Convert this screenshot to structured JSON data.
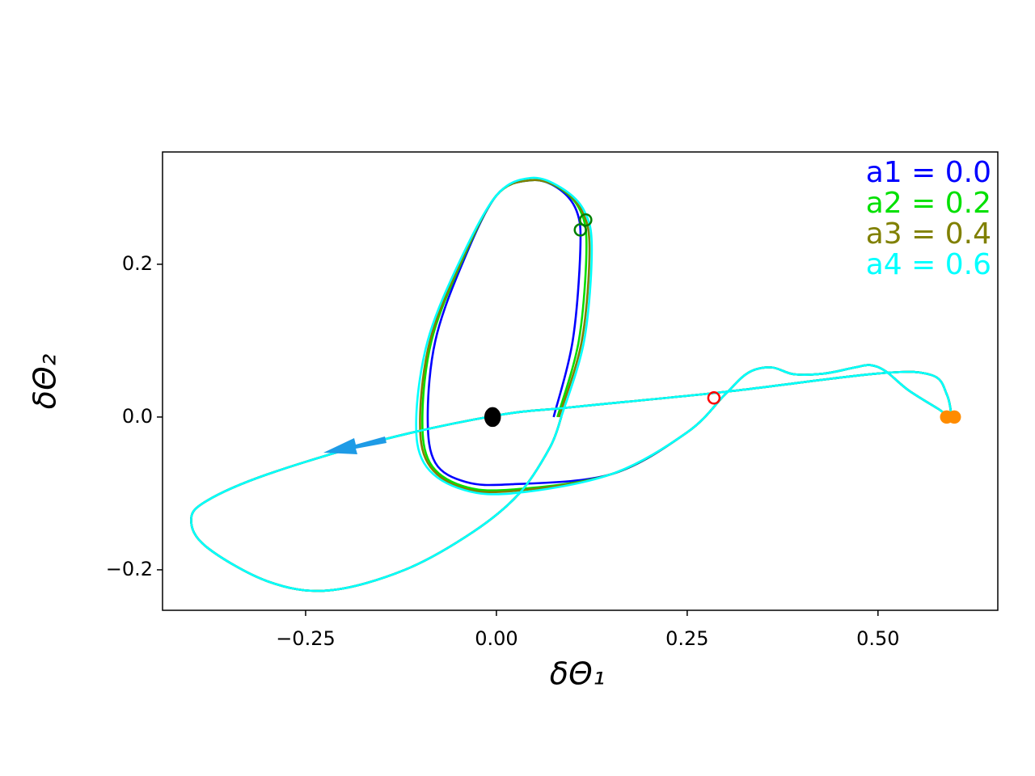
{
  "chart_data": {
    "type": "line",
    "xlabel": "δΘ₁",
    "ylabel": "δΘ₂",
    "xlim": [
      -0.4375,
      0.657
    ],
    "ylim": [
      -0.253,
      0.347
    ],
    "xticks": [
      {
        "value": -0.25,
        "label": "−0.25"
      },
      {
        "value": 0,
        "label": "0.00"
      },
      {
        "value": 0.25,
        "label": "0.25"
      },
      {
        "value": 0.5,
        "label": "0.50"
      }
    ],
    "yticks": [
      {
        "value": -0.2,
        "label": "−0.2"
      },
      {
        "value": 0,
        "label": "0.0"
      },
      {
        "value": 0.2,
        "label": "0.2"
      }
    ],
    "series": [
      {
        "name": "a1 = 0.0",
        "color": "#0000ff",
        "x": [
          0.075,
          0.1,
          0.11,
          0.105,
          0.08,
          0.045,
          0.0,
          -0.045,
          -0.08,
          -0.09,
          -0.08,
          -0.04,
          0.02,
          0.15,
          0.25,
          0.3,
          0.33,
          0.36,
          0.39,
          0.43,
          0.47,
          0.49,
          0.51,
          0.54,
          0.58,
          0.595,
          0.59,
          0.57,
          0.5,
          0.3,
          0.1,
          0.0,
          -0.15,
          -0.3,
          -0.38,
          -0.4,
          -0.38,
          -0.3,
          -0.22,
          -0.12,
          -0.03,
          0.03,
          0.07,
          0.085
        ],
        "y": [
          0.0,
          0.1,
          0.22,
          0.27,
          0.3,
          0.31,
          0.29,
          0.2,
          0.1,
          0.0,
          -0.06,
          -0.085,
          -0.088,
          -0.075,
          -0.02,
          0.03,
          0.058,
          0.065,
          0.056,
          0.057,
          0.065,
          0.068,
          0.06,
          0.035,
          0.01,
          0.0,
          0.03,
          0.055,
          0.057,
          0.033,
          0.013,
          0.002,
          -0.03,
          -0.075,
          -0.11,
          -0.135,
          -0.17,
          -0.215,
          -0.227,
          -0.2,
          -0.15,
          -0.1,
          -0.04,
          0.0
        ]
      },
      {
        "name": "a2 = 0.2",
        "color": "#00e000",
        "x": [
          0.08,
          0.108,
          0.118,
          0.11,
          0.082,
          0.045,
          0.0,
          -0.047,
          -0.085,
          -0.097,
          -0.087,
          -0.045,
          0.02,
          0.15,
          0.25,
          0.3,
          0.33,
          0.36,
          0.39,
          0.43,
          0.47,
          0.49,
          0.51,
          0.54,
          0.58,
          0.595,
          0.59,
          0.57,
          0.5,
          0.3,
          0.1,
          0.0,
          -0.15,
          -0.3,
          -0.38,
          -0.4,
          -0.38,
          -0.3,
          -0.22,
          -0.12,
          -0.03,
          0.03,
          0.07,
          0.085
        ],
        "y": [
          0.0,
          0.1,
          0.22,
          0.27,
          0.3,
          0.31,
          0.29,
          0.2,
          0.1,
          0.0,
          -0.06,
          -0.09,
          -0.095,
          -0.075,
          -0.02,
          0.03,
          0.058,
          0.065,
          0.056,
          0.057,
          0.065,
          0.068,
          0.06,
          0.035,
          0.01,
          0.0,
          0.03,
          0.055,
          0.057,
          0.033,
          0.013,
          0.002,
          -0.03,
          -0.075,
          -0.11,
          -0.135,
          -0.17,
          -0.215,
          -0.227,
          -0.2,
          -0.15,
          -0.1,
          -0.04,
          0.0
        ]
      },
      {
        "name": "a3 = 0.4",
        "color": "#808000",
        "x": [
          0.082,
          0.112,
          0.122,
          0.112,
          0.083,
          0.045,
          0.0,
          -0.048,
          -0.087,
          -0.1,
          -0.09,
          -0.047,
          0.02,
          0.15,
          0.25,
          0.3,
          0.33,
          0.36,
          0.39,
          0.43,
          0.47,
          0.49,
          0.51,
          0.54,
          0.58,
          0.595,
          0.59,
          0.57,
          0.5,
          0.3,
          0.1,
          0.0,
          -0.15,
          -0.3,
          -0.38,
          -0.4,
          -0.38,
          -0.3,
          -0.22,
          -0.12,
          -0.03,
          0.03,
          0.07,
          0.085
        ],
        "y": [
          0.0,
          0.1,
          0.22,
          0.27,
          0.3,
          0.31,
          0.29,
          0.2,
          0.1,
          0.0,
          -0.06,
          -0.092,
          -0.097,
          -0.075,
          -0.02,
          0.03,
          0.058,
          0.065,
          0.056,
          0.057,
          0.065,
          0.068,
          0.06,
          0.035,
          0.01,
          0.0,
          0.03,
          0.055,
          0.057,
          0.033,
          0.013,
          0.002,
          -0.03,
          -0.075,
          -0.11,
          -0.135,
          -0.17,
          -0.215,
          -0.227,
          -0.2,
          -0.15,
          -0.1,
          -0.04,
          0.0
        ]
      },
      {
        "name": "a4 = 0.6",
        "color": "#00ffff",
        "x": [
          0.085,
          0.115,
          0.125,
          0.115,
          0.085,
          0.045,
          0.0,
          -0.05,
          -0.09,
          -0.105,
          -0.095,
          -0.05,
          0.02,
          0.15,
          0.25,
          0.3,
          0.33,
          0.36,
          0.39,
          0.43,
          0.47,
          0.49,
          0.51,
          0.54,
          0.58,
          0.595,
          0.59,
          0.57,
          0.5,
          0.3,
          0.1,
          0.0,
          -0.15,
          -0.3,
          -0.38,
          -0.4,
          -0.38,
          -0.3,
          -0.22,
          -0.12,
          -0.03,
          0.03,
          0.07,
          0.085
        ],
        "y": [
          0.0,
          0.1,
          0.22,
          0.27,
          0.3,
          0.313,
          0.29,
          0.2,
          0.1,
          0.0,
          -0.06,
          -0.093,
          -0.1,
          -0.075,
          -0.02,
          0.03,
          0.058,
          0.065,
          0.056,
          0.057,
          0.065,
          0.068,
          0.06,
          0.035,
          0.01,
          0.0,
          0.03,
          0.055,
          0.057,
          0.033,
          0.013,
          0.002,
          -0.03,
          -0.075,
          -0.11,
          -0.135,
          -0.17,
          -0.215,
          -0.227,
          -0.2,
          -0.15,
          -0.1,
          -0.04,
          0.0
        ]
      }
    ],
    "markers": [
      {
        "x": 0.11,
        "y": 0.245,
        "color": "#008000",
        "filled": false
      },
      {
        "x": 0.117,
        "y": 0.258,
        "color": "#008000",
        "filled": false
      },
      {
        "x": 0.285,
        "y": 0.025,
        "color": "#ff0000",
        "filled": false
      },
      {
        "x": 0.59,
        "y": 0.0,
        "color": "#ff8c00",
        "filled": true
      },
      {
        "x": 0.6,
        "y": 0.0,
        "color": "#ff8c00",
        "filled": true
      },
      {
        "x": -0.005,
        "y": 0.0,
        "color": "#000000",
        "filled": true
      }
    ]
  }
}
